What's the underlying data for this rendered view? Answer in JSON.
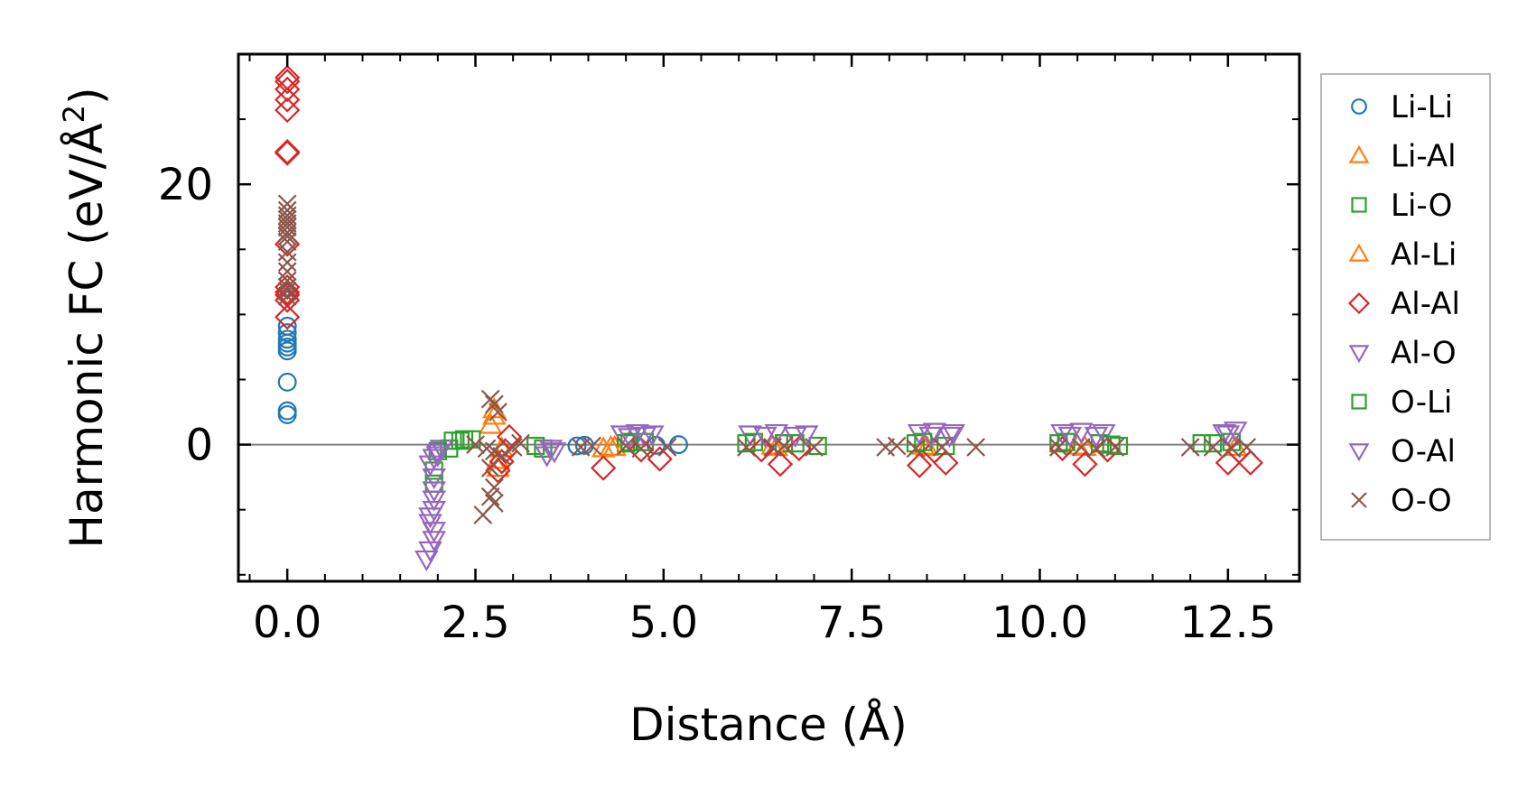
{
  "chart_data": {
    "type": "scatter",
    "xlabel": "Distance (Å)",
    "ylabel_main": "Harmonic FC (eV/Å",
    "ylabel_sup": "2",
    "ylabel_close": ")",
    "xlim": [
      -0.65,
      13.45
    ],
    "ylim": [
      -10.5,
      30
    ],
    "xticks": [
      0.0,
      2.5,
      5.0,
      7.5,
      10.0,
      12.5
    ],
    "xtick_labels": [
      "0.0",
      "2.5",
      "5.0",
      "7.5",
      "10.0",
      "12.5"
    ],
    "yticks": [
      0,
      20
    ],
    "ytick_labels": [
      "0",
      "20"
    ],
    "zero_line": true,
    "legend_position": "outside-right",
    "series": [
      {
        "name": "Li-Li",
        "marker": "circle",
        "color": "#1f77b4",
        "points": [
          [
            0,
            2.3
          ],
          [
            0,
            2.6
          ],
          [
            0,
            4.8
          ],
          [
            0,
            7.2
          ],
          [
            0,
            7.5
          ],
          [
            0,
            7.8
          ],
          [
            0,
            8.1
          ],
          [
            0,
            8.6
          ],
          [
            0,
            9.1
          ],
          [
            3.85,
            -0.1
          ],
          [
            3.95,
            -0.05
          ],
          [
            4.9,
            -0.05
          ],
          [
            5.2,
            0.0
          ]
        ]
      },
      {
        "name": "Li-Al",
        "marker": "triangle-up",
        "color": "#ff7f0e",
        "points": [
          [
            2.75,
            2.7
          ],
          [
            2.7,
            1.5
          ],
          [
            2.8,
            -1.8
          ],
          [
            2.85,
            -0.3
          ],
          [
            4.2,
            -0.3
          ],
          [
            4.35,
            -0.2
          ],
          [
            6.5,
            -0.2
          ],
          [
            8.5,
            -0.2
          ],
          [
            10.6,
            -0.2
          ],
          [
            12.6,
            -0.2
          ]
        ]
      },
      {
        "name": "Li-O",
        "marker": "square",
        "color": "#2ca02c",
        "points": [
          [
            1.95,
            -2.0
          ],
          [
            1.95,
            -3.0
          ],
          [
            2.0,
            -0.5
          ],
          [
            2.15,
            -0.3
          ],
          [
            2.3,
            0.3
          ],
          [
            2.45,
            0.4
          ],
          [
            3.3,
            -0.1
          ],
          [
            3.4,
            -0.3
          ],
          [
            4.5,
            0.1
          ],
          [
            4.75,
            0.2
          ],
          [
            6.1,
            0.1
          ],
          [
            6.6,
            0.1
          ],
          [
            7.05,
            -0.1
          ],
          [
            8.35,
            0.1
          ],
          [
            8.75,
            -0.1
          ],
          [
            10.25,
            0.1
          ],
          [
            10.8,
            0.1
          ],
          [
            11.05,
            -0.1
          ],
          [
            12.15,
            0.1
          ],
          [
            12.55,
            0.2
          ]
        ]
      },
      {
        "name": "Al-Li",
        "marker": "triangle-up",
        "color": "#ff7f0e",
        "points": [
          [
            2.75,
            2.2
          ],
          [
            2.8,
            -1.2
          ],
          [
            4.3,
            -0.2
          ],
          [
            6.45,
            -0.1
          ],
          [
            8.45,
            -0.1
          ],
          [
            10.5,
            -0.1
          ]
        ]
      },
      {
        "name": "Al-Al",
        "marker": "diamond",
        "color": "#d62728",
        "points": [
          [
            0,
            28.2
          ],
          [
            0,
            27.9
          ],
          [
            0,
            27.3
          ],
          [
            0,
            26.5
          ],
          [
            0,
            25.7
          ],
          [
            0,
            22.5
          ],
          [
            0,
            22.4
          ],
          [
            0,
            15.4
          ],
          [
            0,
            12.1
          ],
          [
            0,
            11.7
          ],
          [
            0,
            11.5
          ],
          [
            0,
            11.1
          ],
          [
            0,
            9.8
          ],
          [
            2.95,
            0.6
          ],
          [
            2.9,
            -0.5
          ],
          [
            2.85,
            -1.3
          ],
          [
            2.8,
            -2.0
          ],
          [
            4.2,
            -1.8
          ],
          [
            4.7,
            -0.4
          ],
          [
            4.95,
            -1.1
          ],
          [
            6.55,
            -1.5
          ],
          [
            6.3,
            -0.4
          ],
          [
            6.8,
            -0.3
          ],
          [
            8.4,
            -1.6
          ],
          [
            8.75,
            -1.4
          ],
          [
            8.6,
            -0.5
          ],
          [
            10.6,
            -1.5
          ],
          [
            10.9,
            -0.4
          ],
          [
            10.3,
            -0.3
          ],
          [
            12.5,
            -1.4
          ],
          [
            12.8,
            -1.4
          ],
          [
            12.65,
            -0.5
          ]
        ]
      },
      {
        "name": "Al-O",
        "marker": "triangle-down",
        "color": "#9467bd",
        "points": [
          [
            1.85,
            -8.8
          ],
          [
            1.9,
            -8.1
          ],
          [
            1.95,
            -7.3
          ],
          [
            1.95,
            -6.6
          ],
          [
            1.9,
            -6.0
          ],
          [
            1.95,
            -5.0
          ],
          [
            1.95,
            -4.2
          ],
          [
            1.95,
            -3.5
          ],
          [
            1.9,
            -1.5
          ],
          [
            1.95,
            -1.0
          ],
          [
            2.0,
            -0.6
          ],
          [
            2.05,
            -0.3
          ],
          [
            3.5,
            -0.3
          ],
          [
            3.45,
            -0.8
          ],
          [
            4.45,
            0.8
          ],
          [
            4.65,
            0.9
          ],
          [
            4.85,
            0.8
          ],
          [
            6.15,
            0.8
          ],
          [
            6.5,
            0.9
          ],
          [
            6.9,
            0.8
          ],
          [
            8.4,
            0.9
          ],
          [
            8.6,
            1.0
          ],
          [
            8.85,
            0.9
          ],
          [
            10.3,
            0.9
          ],
          [
            10.55,
            1.0
          ],
          [
            10.85,
            0.9
          ],
          [
            12.45,
            0.9
          ],
          [
            12.6,
            1.1
          ]
        ]
      },
      {
        "name": "O-Li",
        "marker": "square",
        "color": "#2ca02c",
        "points": [
          [
            2.2,
            0.3
          ],
          [
            2.35,
            0.4
          ],
          [
            4.55,
            0.2
          ],
          [
            6.2,
            0.2
          ],
          [
            6.75,
            0.1
          ],
          [
            8.45,
            0.2
          ],
          [
            10.35,
            0.2
          ],
          [
            10.95,
            0.0
          ],
          [
            12.3,
            0.1
          ]
        ]
      },
      {
        "name": "O-Al",
        "marker": "triangle-down",
        "color": "#9467bd",
        "points": [
          [
            1.9,
            -5.5
          ],
          [
            1.95,
            -2.5
          ],
          [
            2.0,
            -0.8
          ],
          [
            3.55,
            -0.5
          ],
          [
            4.55,
            0.6
          ],
          [
            4.75,
            0.7
          ],
          [
            6.35,
            0.7
          ],
          [
            6.75,
            0.7
          ],
          [
            8.55,
            0.7
          ],
          [
            8.8,
            0.7
          ],
          [
            10.4,
            0.7
          ],
          [
            10.75,
            0.7
          ],
          [
            12.5,
            0.8
          ]
        ]
      },
      {
        "name": "O-O",
        "marker": "x",
        "color": "#8c564b",
        "points": [
          [
            0,
            18.5
          ],
          [
            0,
            18.0
          ],
          [
            0,
            17.6
          ],
          [
            0,
            17.3
          ],
          [
            0,
            17.0
          ],
          [
            0,
            16.7
          ],
          [
            0,
            16.3
          ],
          [
            0,
            16.0
          ],
          [
            0,
            15.6
          ],
          [
            0,
            14.8
          ],
          [
            0,
            14.0
          ],
          [
            0,
            13.3
          ],
          [
            0,
            12.6
          ],
          [
            0,
            12.1
          ],
          [
            0,
            11.8
          ],
          [
            0,
            11.4
          ],
          [
            2.7,
            3.5
          ],
          [
            2.75,
            3.1
          ],
          [
            2.8,
            2.5
          ],
          [
            2.65,
            -0.3
          ],
          [
            2.75,
            -0.5
          ],
          [
            2.85,
            -0.9
          ],
          [
            2.7,
            -1.8
          ],
          [
            2.75,
            -3.3
          ],
          [
            2.7,
            -4.0
          ],
          [
            2.75,
            -4.5
          ],
          [
            2.6,
            -5.4
          ],
          [
            2.5,
            0.0
          ],
          [
            3.0,
            -0.2
          ],
          [
            3.1,
            0.1
          ],
          [
            3.9,
            -0.2
          ],
          [
            4.05,
            -0.1
          ],
          [
            4.5,
            -0.1
          ],
          [
            4.7,
            -0.3
          ],
          [
            5.05,
            -0.2
          ],
          [
            6.1,
            -0.2
          ],
          [
            6.45,
            -0.2
          ],
          [
            6.6,
            -0.1
          ],
          [
            7.0,
            -0.2
          ],
          [
            7.95,
            -0.2
          ],
          [
            8.1,
            -0.1
          ],
          [
            8.35,
            -0.3
          ],
          [
            8.7,
            -0.2
          ],
          [
            9.15,
            -0.2
          ],
          [
            10.25,
            -0.2
          ],
          [
            10.55,
            -0.2
          ],
          [
            10.75,
            -0.3
          ],
          [
            11.0,
            -0.2
          ],
          [
            12.0,
            -0.2
          ],
          [
            12.3,
            -0.2
          ],
          [
            12.55,
            -0.3
          ],
          [
            12.75,
            -0.2
          ]
        ]
      }
    ]
  },
  "colors": {
    "li_li": "#1f77b4",
    "li_al": "#ff7f0e",
    "li_o": "#2ca02c",
    "al_al": "#d62728",
    "al_o": "#9467bd",
    "o_o": "#8c564b",
    "zero_line": "#808080",
    "legend_border": "#a0a0a0"
  }
}
